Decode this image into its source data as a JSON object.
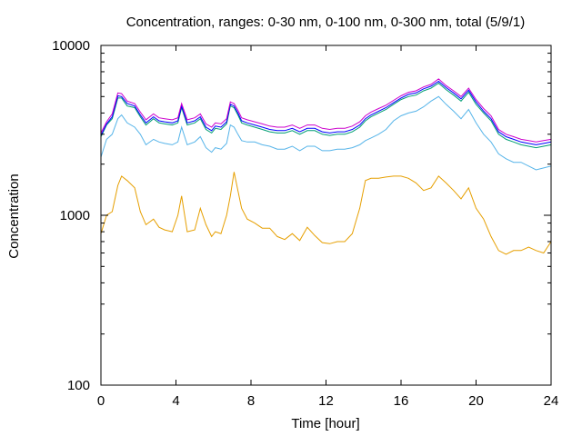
{
  "chart_data": {
    "type": "line",
    "title": "Concentration, ranges: 0-30 nm, 0-100 nm, 0-300 nm, total (5/9/1)",
    "xlabel": "Time [hour]",
    "ylabel": "Concentration",
    "xlim": [
      0,
      24
    ],
    "ylim": [
      100,
      10000
    ],
    "yscale": "log",
    "xticks": [
      0,
      4,
      8,
      12,
      16,
      20,
      24
    ],
    "xtick_labels": [
      "0",
      "4",
      "8",
      "12",
      "16",
      "20",
      "24"
    ],
    "yticks": [
      100,
      1000,
      10000
    ],
    "ytick_labels": [
      "100",
      "1000",
      "10000"
    ],
    "grid": false,
    "legend": "none",
    "series": [
      {
        "color": "#e69f00",
        "x": [
          0,
          0.3,
          0.6,
          0.9,
          1.1,
          1.4,
          1.8,
          2.1,
          2.4,
          2.8,
          3.1,
          3.4,
          3.8,
          4.1,
          4.3,
          4.6,
          5.0,
          5.3,
          5.6,
          5.9,
          6.1,
          6.4,
          6.7,
          6.9,
          7.1,
          7.3,
          7.5,
          7.8,
          8.2,
          8.6,
          9.0,
          9.4,
          9.8,
          10.2,
          10.6,
          11.0,
          11.4,
          11.8,
          12.2,
          12.6,
          13.0,
          13.4,
          13.8,
          14.1,
          14.4,
          14.8,
          15.2,
          15.6,
          16.0,
          16.4,
          16.8,
          17.2,
          17.6,
          18.0,
          18.4,
          18.8,
          19.2,
          19.6,
          20.0,
          20.4,
          20.8,
          21.2,
          21.6,
          22.0,
          22.4,
          22.8,
          23.2,
          23.6,
          24.0
        ],
        "values": [
          780,
          1000,
          1050,
          1500,
          1700,
          1600,
          1450,
          1050,
          880,
          950,
          850,
          820,
          800,
          1000,
          1300,
          800,
          820,
          1100,
          880,
          750,
          800,
          780,
          1000,
          1300,
          1800,
          1400,
          1100,
          950,
          900,
          840,
          840,
          750,
          720,
          780,
          710,
          850,
          760,
          690,
          680,
          700,
          700,
          780,
          1100,
          1600,
          1650,
          1650,
          1680,
          1700,
          1700,
          1650,
          1550,
          1400,
          1450,
          1700,
          1550,
          1400,
          1250,
          1450,
          1100,
          950,
          750,
          620,
          590,
          620,
          620,
          650,
          620,
          600,
          700
        ]
      },
      {
        "color": "#56b4e9",
        "x": [
          0,
          0.3,
          0.6,
          0.9,
          1.1,
          1.4,
          1.8,
          2.1,
          2.4,
          2.8,
          3.1,
          3.4,
          3.8,
          4.1,
          4.3,
          4.6,
          5.0,
          5.3,
          5.6,
          5.9,
          6.1,
          6.4,
          6.7,
          6.9,
          7.1,
          7.3,
          7.5,
          7.8,
          8.2,
          8.6,
          9.0,
          9.4,
          9.8,
          10.2,
          10.6,
          11.0,
          11.4,
          11.8,
          12.2,
          12.6,
          13.0,
          13.4,
          13.8,
          14.1,
          14.4,
          14.8,
          15.2,
          15.6,
          16.0,
          16.4,
          16.8,
          17.2,
          17.6,
          18.0,
          18.4,
          18.8,
          19.2,
          19.6,
          20.0,
          20.4,
          20.8,
          21.2,
          21.6,
          22.0,
          22.4,
          22.8,
          23.2,
          23.6,
          24.0
        ],
        "values": [
          2200,
          2800,
          3000,
          3700,
          3900,
          3500,
          3300,
          3000,
          2600,
          2800,
          2700,
          2650,
          2600,
          2700,
          3300,
          2600,
          2700,
          2900,
          2500,
          2350,
          2500,
          2450,
          2650,
          3400,
          3300,
          3000,
          2750,
          2700,
          2700,
          2600,
          2550,
          2450,
          2450,
          2550,
          2400,
          2550,
          2550,
          2400,
          2400,
          2450,
          2450,
          2500,
          2600,
          2750,
          2850,
          3000,
          3200,
          3600,
          3850,
          4000,
          4100,
          4350,
          4700,
          5000,
          4500,
          4100,
          3700,
          4200,
          3500,
          3000,
          2700,
          2300,
          2150,
          2050,
          2050,
          1950,
          1850,
          1900,
          1950
        ]
      },
      {
        "color": "#009e73",
        "x": [
          0,
          0.3,
          0.6,
          0.9,
          1.1,
          1.4,
          1.8,
          2.1,
          2.4,
          2.8,
          3.1,
          3.4,
          3.8,
          4.1,
          4.3,
          4.6,
          5.0,
          5.3,
          5.6,
          5.9,
          6.1,
          6.4,
          6.7,
          6.9,
          7.1,
          7.3,
          7.5,
          7.8,
          8.2,
          8.6,
          9.0,
          9.4,
          9.8,
          10.2,
          10.6,
          11.0,
          11.4,
          11.8,
          12.2,
          12.6,
          13.0,
          13.4,
          13.8,
          14.1,
          14.4,
          14.8,
          15.2,
          15.6,
          16.0,
          16.4,
          16.8,
          17.2,
          17.6,
          18.0,
          18.4,
          18.8,
          19.2,
          19.6,
          20.0,
          20.4,
          20.8,
          21.2,
          21.6,
          22.0,
          22.4,
          22.8,
          23.2,
          23.6,
          24.0
        ],
        "values": [
          2900,
          3400,
          3700,
          4900,
          4900,
          4400,
          4300,
          3800,
          3400,
          3700,
          3500,
          3450,
          3400,
          3500,
          4300,
          3400,
          3500,
          3700,
          3200,
          3050,
          3250,
          3200,
          3450,
          4400,
          4300,
          3900,
          3500,
          3400,
          3300,
          3200,
          3100,
          3050,
          3050,
          3150,
          3000,
          3150,
          3150,
          3000,
          2950,
          3000,
          3000,
          3100,
          3300,
          3600,
          3800,
          4000,
          4200,
          4500,
          4800,
          5000,
          5100,
          5400,
          5600,
          6000,
          5500,
          5100,
          4700,
          5300,
          4500,
          4000,
          3600,
          3000,
          2800,
          2700,
          2600,
          2550,
          2500,
          2550,
          2600
        ]
      },
      {
        "color": "#0000ff",
        "x": [
          0,
          0.3,
          0.6,
          0.9,
          1.1,
          1.4,
          1.8,
          2.1,
          2.4,
          2.8,
          3.1,
          3.4,
          3.8,
          4.1,
          4.3,
          4.6,
          5.0,
          5.3,
          5.6,
          5.9,
          6.1,
          6.4,
          6.7,
          6.9,
          7.1,
          7.3,
          7.5,
          7.8,
          8.2,
          8.6,
          9.0,
          9.4,
          9.8,
          10.2,
          10.6,
          11.0,
          11.4,
          11.8,
          12.2,
          12.6,
          13.0,
          13.4,
          13.8,
          14.1,
          14.4,
          14.8,
          15.2,
          15.6,
          16.0,
          16.4,
          16.8,
          17.2,
          17.6,
          18.0,
          18.4,
          18.8,
          19.2,
          19.6,
          20.0,
          20.4,
          20.8,
          21.2,
          21.6,
          22.0,
          22.4,
          22.8,
          23.2,
          23.6,
          24.0
        ],
        "values": [
          2950,
          3450,
          3800,
          5050,
          5000,
          4550,
          4400,
          3900,
          3500,
          3800,
          3600,
          3550,
          3500,
          3600,
          4400,
          3500,
          3600,
          3800,
          3300,
          3150,
          3350,
          3300,
          3550,
          4500,
          4400,
          4000,
          3600,
          3500,
          3400,
          3300,
          3200,
          3150,
          3150,
          3250,
          3100,
          3250,
          3250,
          3100,
          3050,
          3100,
          3100,
          3200,
          3400,
          3700,
          3900,
          4100,
          4300,
          4600,
          4900,
          5150,
          5250,
          5550,
          5750,
          6150,
          5650,
          5250,
          4850,
          5450,
          4650,
          4100,
          3700,
          3100,
          2900,
          2800,
          2700,
          2650,
          2600,
          2650,
          2700
        ]
      },
      {
        "color": "#cc00cc",
        "x": [
          0,
          0.3,
          0.6,
          0.9,
          1.1,
          1.4,
          1.8,
          2.1,
          2.4,
          2.8,
          3.1,
          3.4,
          3.8,
          4.1,
          4.3,
          4.6,
          5.0,
          5.3,
          5.6,
          5.9,
          6.1,
          6.4,
          6.7,
          6.9,
          7.1,
          7.3,
          7.5,
          7.8,
          8.2,
          8.6,
          9.0,
          9.4,
          9.8,
          10.2,
          10.6,
          11.0,
          11.4,
          11.8,
          12.2,
          12.6,
          13.0,
          13.4,
          13.8,
          14.1,
          14.4,
          14.8,
          15.2,
          15.6,
          16.0,
          16.4,
          16.8,
          17.2,
          17.6,
          18.0,
          18.4,
          18.8,
          19.2,
          19.6,
          20.0,
          20.4,
          20.8,
          21.2,
          21.6,
          22.0,
          22.4,
          22.8,
          23.2,
          23.6,
          24.0
        ],
        "values": [
          3050,
          3550,
          3950,
          5250,
          5200,
          4700,
          4550,
          4050,
          3650,
          3950,
          3750,
          3700,
          3650,
          3750,
          4550,
          3650,
          3750,
          3950,
          3450,
          3300,
          3500,
          3450,
          3700,
          4650,
          4550,
          4150,
          3750,
          3650,
          3550,
          3450,
          3350,
          3300,
          3300,
          3400,
          3250,
          3400,
          3400,
          3250,
          3200,
          3250,
          3250,
          3350,
          3550,
          3850,
          4050,
          4250,
          4450,
          4750,
          5050,
          5300,
          5400,
          5700,
          5900,
          6350,
          5800,
          5400,
          5000,
          5600,
          4800,
          4250,
          3850,
          3200,
          3000,
          2900,
          2800,
          2750,
          2700,
          2750,
          2800
        ]
      }
    ]
  }
}
